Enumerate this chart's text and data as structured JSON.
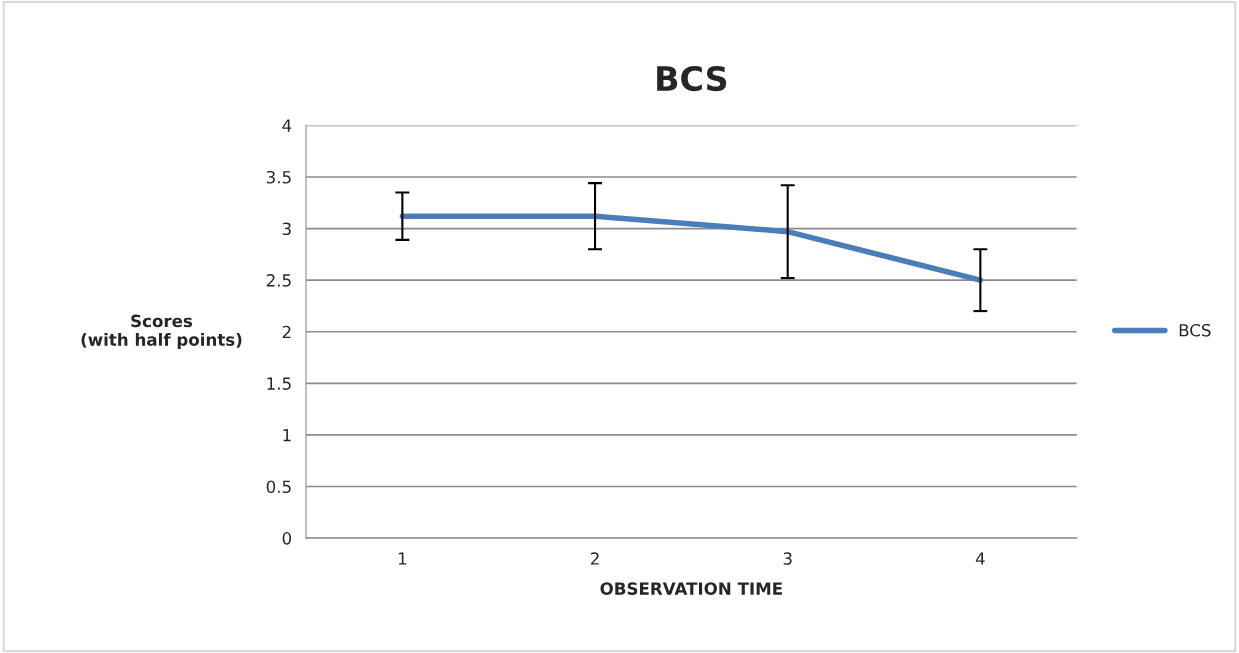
{
  "chart_data": {
    "type": "line",
    "title": "BCS",
    "xlabel": "OBSERVATION TIME",
    "ylabel": "Scores\n(with half points)",
    "categories": [
      "1",
      "2",
      "3",
      "4"
    ],
    "series": [
      {
        "name": "BCS",
        "color": "#4a7ebb",
        "values": [
          3.12,
          3.12,
          2.97,
          2.5
        ],
        "errors": [
          0.23,
          0.32,
          0.45,
          0.3
        ]
      }
    ],
    "ylim": [
      0,
      4
    ],
    "yticks": [
      0,
      0.5,
      1,
      1.5,
      2,
      2.5,
      3,
      3.5,
      4
    ],
    "grid": "y",
    "legend": "right",
    "marker": "none",
    "line_style": "solid"
  }
}
